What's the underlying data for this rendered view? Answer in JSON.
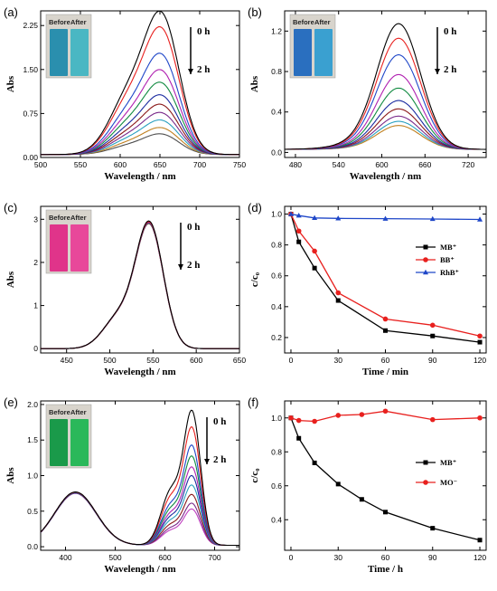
{
  "chart_data": [
    {
      "panel": "(a)",
      "type": "line",
      "xlabel": "Wavelength / nm",
      "ylabel": "Abs",
      "xlim": [
        500,
        750
      ],
      "ylim": [
        0,
        2.5
      ],
      "xticks": [
        500,
        550,
        600,
        650,
        700,
        750
      ],
      "yticks": [
        0.0,
        0.75,
        1.5,
        2.25
      ],
      "ytick_labels": [
        "0.00",
        "0.75",
        "1.50",
        "2.25"
      ],
      "annotation_top": "0 h",
      "annotation_bottom": "2 h",
      "inset_labels": [
        "Before",
        "After"
      ],
      "inset_colors": [
        "#2a8fae",
        "#4ab7c3"
      ],
      "curve_shape": {
        "peak": 653,
        "shoulder": 612,
        "shoulder_ratio": 0.43,
        "baseline": 0.05
      },
      "series": [
        {
          "name": "",
          "peak_abs": 2.33,
          "color": "#000000"
        },
        {
          "name": "",
          "peak_abs": 2.08,
          "color": "#e8201e"
        },
        {
          "name": "",
          "peak_abs": 1.66,
          "color": "#1f47c8"
        },
        {
          "name": "",
          "peak_abs": 1.4,
          "color": "#b020b0"
        },
        {
          "name": "",
          "peak_abs": 1.2,
          "color": "#108a40"
        },
        {
          "name": "",
          "peak_abs": 1.0,
          "color": "#1a2aa0"
        },
        {
          "name": "",
          "peak_abs": 0.85,
          "color": "#8b1a1a"
        },
        {
          "name": "",
          "peak_abs": 0.72,
          "color": "#7a2a8a"
        },
        {
          "name": "",
          "peak_abs": 0.6,
          "color": "#2aa0c0"
        },
        {
          "name": "",
          "peak_abs": 0.48,
          "color": "#c08020"
        },
        {
          "name": "",
          "peak_abs": 0.38,
          "color": "#505050"
        }
      ]
    },
    {
      "panel": "(b)",
      "type": "line",
      "xlabel": "Wavelength / nm",
      "ylabel": "Abs",
      "xlim": [
        465,
        745
      ],
      "ylim": [
        -0.05,
        1.4
      ],
      "xticks": [
        480,
        540,
        600,
        660,
        720
      ],
      "yticks": [
        0.0,
        0.4,
        0.8,
        1.2
      ],
      "ytick_labels": [
        "0.0",
        "0.4",
        "0.8",
        "1.2"
      ],
      "annotation_top": "0 h",
      "annotation_bottom": "2 h",
      "inset_labels": [
        "Before",
        "After"
      ],
      "inset_colors": [
        "#2a6fbf",
        "#3aa0d0"
      ],
      "curve_shape": {
        "peak": 624,
        "baseline": 0.03
      },
      "series": [
        {
          "name": "",
          "peak_abs": 1.24,
          "color": "#000000"
        },
        {
          "name": "",
          "peak_abs": 1.1,
          "color": "#e8201e"
        },
        {
          "name": "",
          "peak_abs": 0.94,
          "color": "#1f47c8"
        },
        {
          "name": "",
          "peak_abs": 0.75,
          "color": "#b020b0"
        },
        {
          "name": "",
          "peak_abs": 0.62,
          "color": "#108a40"
        },
        {
          "name": "",
          "peak_abs": 0.5,
          "color": "#1a2aa0"
        },
        {
          "name": "",
          "peak_abs": 0.42,
          "color": "#8b1a1a"
        },
        {
          "name": "",
          "peak_abs": 0.35,
          "color": "#7a2a8a"
        },
        {
          "name": "",
          "peak_abs": 0.3,
          "color": "#2aa0c0"
        },
        {
          "name": "",
          "peak_abs": 0.26,
          "color": "#c08020"
        }
      ]
    },
    {
      "panel": "(c)",
      "type": "line",
      "xlabel": "Wavelength / nm",
      "ylabel": "Abs",
      "xlim": [
        420,
        650
      ],
      "ylim": [
        -0.1,
        3.3
      ],
      "xticks": [
        450,
        500,
        550,
        600,
        650
      ],
      "yticks": [
        0,
        1,
        2,
        3
      ],
      "ytick_labels": [
        "0",
        "1",
        "2",
        "3"
      ],
      "annotation_top": "0 h",
      "annotation_bottom": "2 h",
      "inset_labels": [
        "Before",
        "After"
      ],
      "inset_colors": [
        "#e0348a",
        "#e8489a"
      ],
      "curve_shape": {
        "peak": 546,
        "shoulder": 512,
        "shoulder_ratio": 0.33,
        "baseline": 0.0
      },
      "series": [
        {
          "name": "",
          "peak_abs": 2.86,
          "color": "#000000"
        },
        {
          "name": "",
          "peak_abs": 2.84,
          "color": "#e8201e"
        },
        {
          "name": "",
          "peak_abs": 2.83,
          "color": "#1f47c8"
        },
        {
          "name": "",
          "peak_abs": 2.82,
          "color": "#b020b0"
        },
        {
          "name": "",
          "peak_abs": 2.81,
          "color": "#108a40"
        },
        {
          "name": "",
          "peak_abs": 2.8,
          "color": "#8b1a1a"
        }
      ]
    },
    {
      "panel": "(d)",
      "type": "line",
      "xlabel": "Time / min",
      "ylabel": "c/c₀",
      "xlim": [
        -4,
        124
      ],
      "ylim": [
        0.1,
        1.05
      ],
      "xticks": [
        0,
        30,
        60,
        90,
        120
      ],
      "yticks": [
        0.2,
        0.4,
        0.6,
        0.8,
        1.0
      ],
      "ytick_labels": [
        "0.2",
        "0.4",
        "0.6",
        "0.8",
        "1.0"
      ],
      "legend_position": "right",
      "series": [
        {
          "name": "MB⁺",
          "marker": "square",
          "color": "#000000",
          "x": [
            0,
            5,
            15,
            30,
            60,
            90,
            120
          ],
          "y": [
            1.0,
            0.82,
            0.65,
            0.44,
            0.245,
            0.21,
            0.17
          ]
        },
        {
          "name": "BB⁺",
          "marker": "circle",
          "color": "#e8201e",
          "x": [
            0,
            5,
            15,
            30,
            60,
            90,
            120
          ],
          "y": [
            1.0,
            0.89,
            0.76,
            0.49,
            0.32,
            0.28,
            0.21
          ]
        },
        {
          "name": "RhB⁺",
          "marker": "triangle",
          "color": "#1f47c8",
          "x": [
            0,
            5,
            15,
            30,
            60,
            90,
            120
          ],
          "y": [
            1.0,
            0.99,
            0.975,
            0.972,
            0.97,
            0.968,
            0.965
          ]
        }
      ]
    },
    {
      "panel": "(e)",
      "type": "line",
      "xlabel": "Wavelength / nm",
      "ylabel": "Abs",
      "xlim": [
        350,
        750
      ],
      "ylim": [
        -0.05,
        2.05
      ],
      "xticks": [
        400,
        500,
        600,
        700
      ],
      "yticks": [
        0.0,
        0.5,
        1.0,
        1.5,
        2.0
      ],
      "ytick_labels": [
        "0.0",
        "0.5",
        "1.0",
        "1.5",
        "2.0"
      ],
      "annotation_top": "0 h",
      "annotation_bottom": "2 h",
      "inset_labels": [
        "Before",
        "After"
      ],
      "inset_colors": [
        "#1a9a4a",
        "#2ab85a"
      ],
      "curve_shape": {
        "peak": 655,
        "shoulder": 612,
        "shoulder_ratio": 0.43,
        "second_peak": 420,
        "second_peak_abs": 0.73,
        "baseline": 0.02
      },
      "series": [
        {
          "name": "",
          "peak_abs": 1.88,
          "color": "#000000"
        },
        {
          "name": "",
          "peak_abs": 1.65,
          "color": "#e8201e"
        },
        {
          "name": "",
          "peak_abs": 1.4,
          "color": "#1f47c8"
        },
        {
          "name": "",
          "peak_abs": 1.25,
          "color": "#108a40"
        },
        {
          "name": "",
          "peak_abs": 1.1,
          "color": "#b020b0"
        },
        {
          "name": "",
          "peak_abs": 0.98,
          "color": "#1a2aa0"
        },
        {
          "name": "",
          "peak_abs": 0.85,
          "color": "#2aa0c0"
        },
        {
          "name": "",
          "peak_abs": 0.72,
          "color": "#8b1a1a"
        },
        {
          "name": "",
          "peak_abs": 0.6,
          "color": "#7a2a8a"
        },
        {
          "name": "",
          "peak_abs": 0.52,
          "color": "#c040c0"
        }
      ]
    },
    {
      "panel": "(f)",
      "type": "line",
      "xlabel": "Time / h",
      "ylabel": "c/c₀",
      "xlim": [
        -4,
        124
      ],
      "ylim": [
        0.22,
        1.1
      ],
      "xticks": [
        0,
        30,
        60,
        90,
        120
      ],
      "yticks": [
        0.4,
        0.6,
        0.8,
        1.0
      ],
      "ytick_labels": [
        "0.4",
        "0.6",
        "0.8",
        "1.0"
      ],
      "legend_position": "right",
      "series": [
        {
          "name": "MB⁺",
          "marker": "square",
          "color": "#000000",
          "x": [
            0,
            5,
            15,
            30,
            45,
            60,
            90,
            120
          ],
          "y": [
            1.0,
            0.88,
            0.735,
            0.61,
            0.52,
            0.445,
            0.35,
            0.28
          ]
        },
        {
          "name": "MO⁻",
          "marker": "circle",
          "color": "#e8201e",
          "x": [
            0,
            5,
            15,
            30,
            45,
            60,
            90,
            120
          ],
          "y": [
            1.0,
            0.985,
            0.98,
            1.015,
            1.02,
            1.04,
            0.99,
            1.0
          ]
        }
      ]
    }
  ]
}
